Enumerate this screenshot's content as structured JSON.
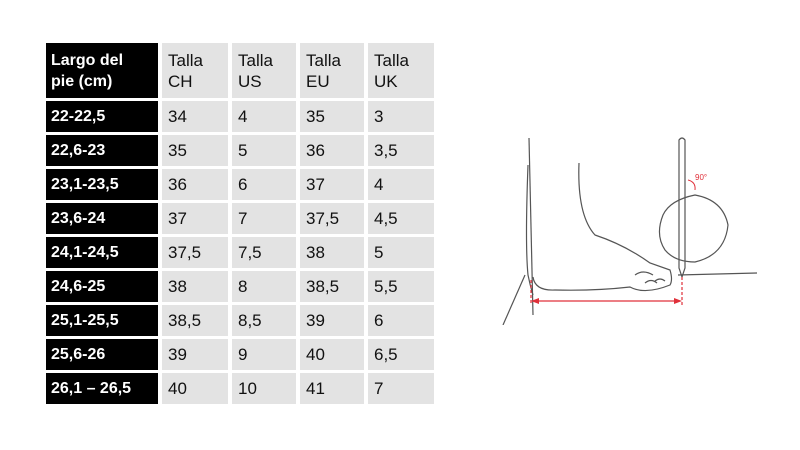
{
  "table": {
    "headers": [
      "Largo del\npie (cm)",
      "Talla\nCH",
      "Talla\nUS",
      "Talla\nEU",
      "Talla\nUK"
    ],
    "rows": [
      [
        "22-22,5",
        "34",
        "4",
        "35",
        "3"
      ],
      [
        "22,6-23",
        "35",
        "5",
        "36",
        "3,5"
      ],
      [
        "23,1-23,5",
        "36",
        "6",
        "37",
        "4"
      ],
      [
        "23,6-24",
        "37",
        "7",
        "37,5",
        "4,5"
      ],
      [
        "24,1-24,5",
        "37,5",
        "7,5",
        "38",
        "5"
      ],
      [
        "24,6-25",
        "38",
        "8",
        "38,5",
        "5,5"
      ],
      [
        "25,1-25,5",
        "38,5",
        "8,5",
        "39",
        "6"
      ],
      [
        "25,6-26",
        "39",
        "9",
        "40",
        "6,5"
      ],
      [
        "26,1 – 26,5",
        "40",
        "10",
        "41",
        "7"
      ]
    ]
  },
  "illustration": {
    "angle_label": "90°",
    "accent_color": "#e0303a"
  }
}
